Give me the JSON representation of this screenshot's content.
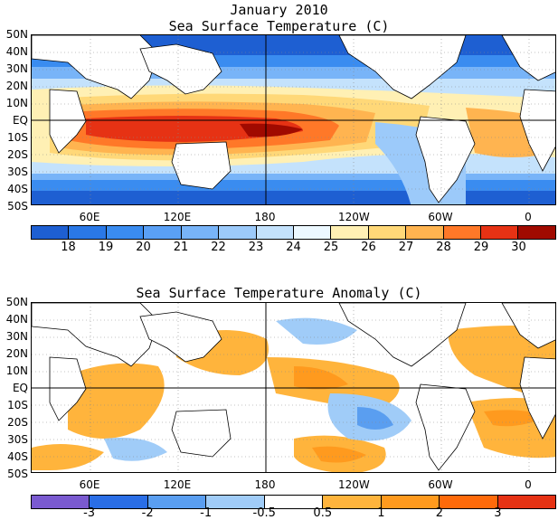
{
  "header": {
    "date_title": "January 2010",
    "sst_title": "Sea Surface Temperature (C)",
    "anom_title": "Sea Surface Temperature Anomaly (C)"
  },
  "axes": {
    "lat_labels": [
      "50N",
      "40N",
      "30N",
      "20N",
      "10N",
      "EQ",
      "10S",
      "20S",
      "30S",
      "40S",
      "50S"
    ],
    "lon_labels": [
      "60E",
      "120E",
      "180",
      "120W",
      "60W",
      "0"
    ]
  },
  "sst_colorbar": {
    "labels": [
      "18",
      "19",
      "20",
      "21",
      "22",
      "23",
      "24",
      "25",
      "26",
      "27",
      "28",
      "29",
      "30"
    ],
    "colors": [
      "#1e5fd2",
      "#2a78e6",
      "#3a8cf0",
      "#5aa0f5",
      "#78b4f8",
      "#9ccafa",
      "#c4e2fc",
      "#ecf8ff",
      "#fff0b4",
      "#ffd878",
      "#ffb450",
      "#ff7828",
      "#e63214",
      "#a00a00"
    ]
  },
  "anom_colorbar": {
    "labels": [
      "-3",
      "-2",
      "-1",
      "-0.5",
      "0.5",
      "1",
      "2",
      "3"
    ],
    "colors": [
      "#7a5ad0",
      "#2a6ee6",
      "#5a9ef0",
      "#a0ccf8",
      "#ffffff",
      "#ffb43c",
      "#ff9a1e",
      "#ff6a0a",
      "#e63214"
    ]
  },
  "chart_data": [
    {
      "type": "heatmap",
      "title": "Sea Surface Temperature (C)",
      "units": "C",
      "lat_range": [
        "50S",
        "50N"
      ],
      "lon_range": [
        "20E",
        "20E"
      ],
      "levels": [
        18,
        19,
        20,
        21,
        22,
        23,
        24,
        25,
        26,
        27,
        28,
        29,
        30
      ],
      "colors": [
        "#1e5fd2",
        "#2a78e6",
        "#3a8cf0",
        "#5aa0f5",
        "#78b4f8",
        "#9ccafa",
        "#c4e2fc",
        "#ecf8ff",
        "#fff0b4",
        "#ffd878",
        "#ffb450",
        "#ff7828",
        "#e63214",
        "#a00a00"
      ]
    },
    {
      "type": "heatmap",
      "title": "Sea Surface Temperature Anomaly (C)",
      "units": "C",
      "lat_range": [
        "50S",
        "50N"
      ],
      "lon_range": [
        "20E",
        "20E"
      ],
      "levels": [
        -3,
        -2,
        -1,
        -0.5,
        0.5,
        1,
        2,
        3
      ],
      "colors": [
        "#7a5ad0",
        "#2a6ee6",
        "#5a9ef0",
        "#a0ccf8",
        "#ffffff",
        "#ffb43c",
        "#ff9a1e",
        "#ff6a0a",
        "#e63214"
      ]
    }
  ]
}
